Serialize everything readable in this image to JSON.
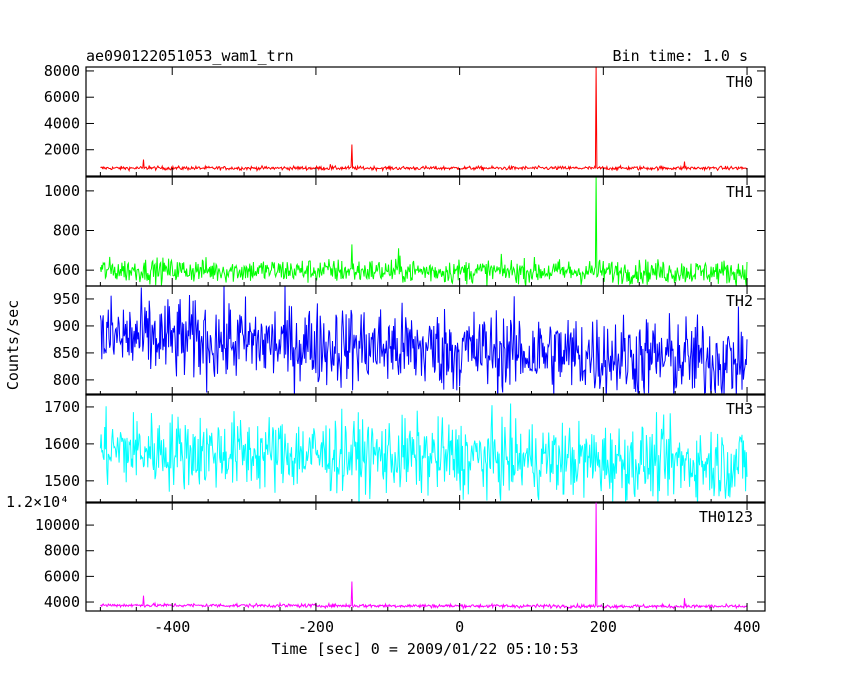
{
  "header": {
    "title": "ae090122051053_wam1_trn",
    "bin_time": "Bin time: 1.0 s"
  },
  "chart_data": {
    "type": "line",
    "xlabel": "Time [sec] 0 = 2009/01/22 05:10:53",
    "ylabel": "Counts/sec",
    "xlim": [
      -520,
      425
    ],
    "x_ticks": [
      -400,
      -200,
      0,
      200,
      400
    ],
    "x_tick_labels": [
      "-400",
      "-200",
      "0",
      "200",
      "400"
    ],
    "panels": [
      {
        "name": "TH0",
        "color": "#ff0000",
        "ylim": [
          0,
          8300
        ],
        "yticks": [
          2000,
          4000,
          6000,
          8000
        ],
        "ytick_labels": [
          "2000",
          "4000",
          "6000",
          "8000"
        ],
        "baseline": 600,
        "noise": 70,
        "trend": 0,
        "spikes": [
          {
            "x": -440,
            "y": 1250
          },
          {
            "x": -432,
            "y": 800
          },
          {
            "x": -180,
            "y": 900
          },
          {
            "x": -150,
            "y": 2400
          },
          {
            "x": 190,
            "y": 8300
          },
          {
            "x": 313,
            "y": 1100
          }
        ]
      },
      {
        "name": "TH1",
        "color": "#00ff00",
        "ylim": [
          520,
          1070
        ],
        "yticks": [
          600,
          800,
          1000
        ],
        "ytick_labels": [
          "600",
          "800",
          "1000"
        ],
        "baseline": 600,
        "noise": 30,
        "trend": -10,
        "spikes": [
          {
            "x": -150,
            "y": 730
          },
          {
            "x": -85,
            "y": 710
          },
          {
            "x": 190,
            "y": 1070
          }
        ]
      },
      {
        "name": "TH2",
        "color": "#0000ff",
        "ylim": [
          772,
          974
        ],
        "yticks": [
          800,
          850,
          900,
          950
        ],
        "ytick_labels": [
          "800",
          "850",
          "900",
          "950"
        ],
        "baseline": 880,
        "noise": 38,
        "trend": -45,
        "spikes": []
      },
      {
        "name": "TH3",
        "color": "#00ffff",
        "ylim": [
          1440,
          1735
        ],
        "yticks": [
          1500,
          1600,
          1700
        ],
        "ytick_labels": [
          "1500",
          "1600",
          "1700"
        ],
        "baseline": 1585,
        "noise": 50,
        "trend": -40,
        "spikes": []
      },
      {
        "name": "TH0123",
        "color": "#ff00ff",
        "ylim": [
          3300,
          11800
        ],
        "yticks": [
          4000,
          6000,
          8000,
          10000
        ],
        "ytick_labels": [
          "4000",
          "6000",
          "8000",
          "10000"
        ],
        "baseline": 3750,
        "noise": 70,
        "trend": -100,
        "scale_label": "1.2×10⁴",
        "spikes": [
          {
            "x": -440,
            "y": 4500
          },
          {
            "x": -150,
            "y": 5600
          },
          {
            "x": 190,
            "y": 11800
          },
          {
            "x": 313,
            "y": 4300
          }
        ]
      }
    ],
    "x_range_data": [
      -500,
      400
    ]
  }
}
